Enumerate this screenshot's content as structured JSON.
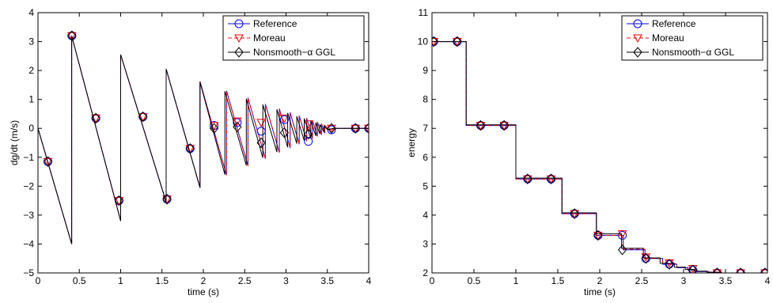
{
  "chart_data": [
    {
      "type": "line",
      "xlabel": "time (s)",
      "ylabel": "dg/dt (m/s)",
      "xlim": [
        0,
        4
      ],
      "ylim": [
        -5,
        4
      ],
      "xticks": [
        "0",
        "0.5",
        "1",
        "1.5",
        "2",
        "2.5",
        "3",
        "3.5",
        "4"
      ],
      "yticks": [
        "−5",
        "−4",
        "−3",
        "−2",
        "−1",
        "0",
        "1",
        "2",
        "3",
        "4"
      ],
      "legend_position": "top-right",
      "series": [
        {
          "name": "Reference",
          "color": "#0000ff",
          "dash": "solid",
          "marker": "circle",
          "x": [
            0,
            0.408,
            0.408,
            1.0,
            1.0,
            1.55,
            1.55,
            1.96,
            1.96,
            2.28,
            2.28,
            2.54,
            2.54,
            2.75,
            2.75,
            2.92,
            2.92,
            3.05,
            3.05,
            3.16,
            3.16,
            3.25,
            3.25,
            3.32,
            3.32,
            3.38,
            3.38,
            3.43,
            3.43,
            3.47,
            3.47,
            3.52,
            3.6,
            4.0
          ],
          "y": [
            0,
            -4.0,
            3.2,
            -3.2,
            2.55,
            -2.55,
            2.05,
            -2.05,
            1.62,
            -1.62,
            1.3,
            -1.3,
            1.05,
            -1.05,
            0.84,
            -0.84,
            0.68,
            -0.68,
            0.55,
            -0.55,
            0.44,
            -0.44,
            0.36,
            -0.36,
            0.28,
            -0.28,
            0.22,
            -0.22,
            0.16,
            -0.16,
            0.1,
            -0.05,
            0,
            0
          ],
          "marker_x": [
            0.12,
            0.41,
            0.7,
            0.98,
            1.27,
            1.56,
            1.84,
            2.13,
            2.41,
            2.7,
            2.98,
            3.27,
            3.55,
            3.84,
            4.0
          ],
          "marker_y": [
            -1.15,
            3.2,
            0.35,
            -2.5,
            0.4,
            -2.45,
            -0.7,
            0.1,
            0.2,
            -0.1,
            0.3,
            -0.45,
            -0.05,
            0,
            0
          ]
        },
        {
          "name": "Moreau",
          "color": "#ff0000",
          "dash": "dashed",
          "marker": "triangle-down",
          "x": [
            0,
            0.408,
            0.408,
            1.0,
            1.0,
            1.55,
            1.55,
            1.96,
            1.96,
            2.28,
            2.28,
            2.54,
            2.54,
            2.75,
            2.75,
            2.92,
            2.92,
            3.05,
            3.05,
            3.16,
            3.16,
            3.25,
            3.25,
            3.32,
            3.32,
            3.38,
            3.38,
            3.43,
            3.43,
            3.47,
            3.47,
            3.52,
            3.6,
            4.0
          ],
          "y": [
            0,
            -4.0,
            3.2,
            -3.2,
            2.55,
            -2.55,
            2.05,
            -2.05,
            1.62,
            -1.62,
            1.3,
            -1.3,
            1.05,
            -1.05,
            0.84,
            -0.84,
            0.68,
            -0.68,
            0.55,
            -0.55,
            0.44,
            -0.44,
            0.36,
            -0.36,
            0.28,
            -0.28,
            0.22,
            -0.22,
            0.16,
            -0.16,
            0.1,
            -0.05,
            0,
            0
          ],
          "marker_x": [
            0.12,
            0.41,
            0.7,
            0.98,
            1.27,
            1.56,
            1.84,
            2.13,
            2.41,
            2.7,
            2.98,
            3.27,
            3.55,
            3.84,
            4.0
          ],
          "marker_y": [
            -1.15,
            3.2,
            0.35,
            -2.5,
            0.4,
            -2.45,
            -0.7,
            0.1,
            0.25,
            0.2,
            0.35,
            0.15,
            0,
            0,
            0
          ]
        },
        {
          "name": "Nonsmooth−α GGL",
          "color": "#000000",
          "dash": "solid",
          "marker": "diamond",
          "x": [
            0,
            0.408,
            0.408,
            1.0,
            1.0,
            1.55,
            1.55,
            1.96,
            1.96,
            2.26,
            2.26,
            2.52,
            2.52,
            2.72,
            2.72,
            2.89,
            2.89,
            3.02,
            3.02,
            3.13,
            3.13,
            3.22,
            3.22,
            3.3,
            3.3,
            3.36,
            3.36,
            3.41,
            3.41,
            3.46,
            3.46,
            3.5,
            3.58,
            4.0
          ],
          "y": [
            0,
            -4.0,
            3.2,
            -3.2,
            2.55,
            -2.55,
            2.05,
            -2.05,
            1.6,
            -1.6,
            1.28,
            -1.28,
            1.02,
            -1.02,
            0.82,
            -0.82,
            0.66,
            -0.66,
            0.53,
            -0.53,
            0.42,
            -0.42,
            0.34,
            -0.34,
            0.26,
            -0.26,
            0.2,
            -0.2,
            0.14,
            -0.14,
            0.08,
            -0.04,
            0,
            0
          ],
          "marker_x": [
            0.12,
            0.41,
            0.7,
            0.98,
            1.27,
            1.56,
            1.84,
            2.13,
            2.41,
            2.7,
            2.98,
            3.27,
            3.55,
            3.84,
            4.0
          ],
          "marker_y": [
            -1.15,
            3.2,
            0.35,
            -2.5,
            0.4,
            -2.45,
            -0.7,
            0.0,
            0.05,
            -0.5,
            -0.15,
            -0.2,
            0,
            0,
            0
          ]
        }
      ]
    },
    {
      "type": "line",
      "xlabel": "time (s)",
      "ylabel": "energy",
      "xlim": [
        0,
        4
      ],
      "ylim": [
        2,
        11
      ],
      "xticks": [
        "0",
        "0.5",
        "1",
        "1.5",
        "2",
        "2.5",
        "3",
        "3.5",
        "4"
      ],
      "yticks": [
        "2",
        "3",
        "4",
        "5",
        "6",
        "7",
        "8",
        "9",
        "10",
        "11"
      ],
      "legend_position": "top-right",
      "series": [
        {
          "name": "Reference",
          "color": "#0000ff",
          "dash": "solid",
          "marker": "circle",
          "x": [
            0,
            0.408,
            0.408,
            1.0,
            1.0,
            1.55,
            1.55,
            1.96,
            1.96,
            2.28,
            2.28,
            2.54,
            2.54,
            2.75,
            2.75,
            2.92,
            2.92,
            3.05,
            3.05,
            3.16,
            3.16,
            3.3,
            3.3,
            3.45,
            3.45,
            4.0
          ],
          "y": [
            10,
            10,
            7.1,
            7.1,
            5.25,
            5.25,
            4.05,
            4.05,
            3.3,
            3.3,
            2.8,
            2.8,
            2.5,
            2.5,
            2.3,
            2.3,
            2.18,
            2.18,
            2.1,
            2.1,
            2.05,
            2.05,
            2.02,
            2.02,
            2.0,
            2.0
          ],
          "marker_x": [
            0.02,
            0.3,
            0.58,
            0.86,
            1.14,
            1.42,
            1.7,
            1.98,
            2.27,
            2.55,
            2.83,
            3.11,
            3.4,
            3.68,
            3.97
          ],
          "marker_y": [
            10,
            10,
            7.1,
            7.1,
            5.25,
            5.25,
            4.05,
            3.3,
            3.3,
            2.5,
            2.3,
            2.1,
            2.0,
            2.0,
            2.0
          ]
        },
        {
          "name": "Moreau",
          "color": "#ff0000",
          "dash": "dashed",
          "marker": "triangle-down",
          "x": [
            0,
            0.408,
            0.408,
            1.0,
            1.0,
            1.55,
            1.55,
            1.96,
            1.96,
            2.28,
            2.28,
            2.54,
            2.54,
            2.75,
            2.75,
            2.92,
            2.92,
            3.05,
            3.05,
            3.16,
            3.16,
            3.3,
            3.3,
            3.45,
            3.45,
            4.0
          ],
          "y": [
            10,
            10,
            7.1,
            7.1,
            5.25,
            5.25,
            4.05,
            4.05,
            3.3,
            3.3,
            2.82,
            2.82,
            2.5,
            2.5,
            2.32,
            2.32,
            2.2,
            2.2,
            2.12,
            2.12,
            2.06,
            2.06,
            2.03,
            2.03,
            2.0,
            2.0
          ],
          "marker_x": [
            0.02,
            0.3,
            0.58,
            0.86,
            1.14,
            1.42,
            1.7,
            1.98,
            2.27,
            2.55,
            2.83,
            3.11,
            3.4,
            3.68,
            3.97
          ],
          "marker_y": [
            10,
            10,
            7.1,
            7.1,
            5.25,
            5.25,
            4.05,
            3.3,
            3.35,
            2.55,
            2.35,
            2.15,
            2.0,
            2.0,
            2.0
          ]
        },
        {
          "name": "Nonsmooth−α GGL",
          "color": "#000000",
          "dash": "solid",
          "marker": "diamond",
          "x": [
            0,
            0.408,
            0.408,
            1.0,
            1.0,
            1.55,
            1.55,
            1.96,
            1.96,
            2.26,
            2.26,
            2.52,
            2.52,
            2.72,
            2.72,
            2.89,
            2.89,
            3.02,
            3.02,
            3.13,
            3.13,
            3.28,
            3.28,
            3.43,
            3.43,
            4.0
          ],
          "y": [
            10,
            10,
            7.12,
            7.12,
            5.28,
            5.28,
            4.08,
            4.08,
            3.35,
            3.35,
            2.85,
            2.85,
            2.52,
            2.52,
            2.33,
            2.33,
            2.2,
            2.2,
            2.12,
            2.12,
            2.06,
            2.06,
            2.02,
            2.02,
            2.0,
            2.0
          ],
          "marker_x": [
            0.02,
            0.3,
            0.58,
            0.86,
            1.14,
            1.42,
            1.7,
            1.98,
            2.27,
            2.55,
            2.83,
            3.11,
            3.4,
            3.68,
            3.97
          ],
          "marker_y": [
            10,
            10,
            7.1,
            7.1,
            5.25,
            5.25,
            4.05,
            3.3,
            2.8,
            2.5,
            2.3,
            2.1,
            2.0,
            2.0,
            2.0
          ]
        }
      ]
    }
  ]
}
